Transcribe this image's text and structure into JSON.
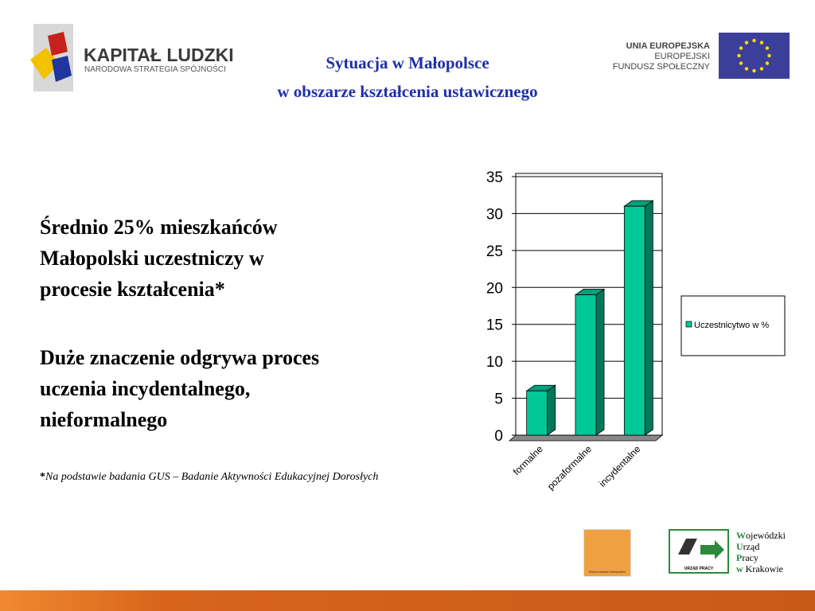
{
  "header": {
    "program_name": "KAPITAŁ LUDZKI",
    "program_subtitle": "NARODOWA STRATEGIA SPÓJNOŚCI",
    "title_lines": [
      "Sytuacja w Małopolsce",
      "w obszarze kształcenia ustawicznego"
    ],
    "eu_lines": [
      "UNIA EUROPEJSKA",
      "EUROPEJSKI",
      "FUNDUSZ SPOŁECZNY"
    ]
  },
  "body": {
    "paragraph_1": [
      "Średnio 25% mieszkańców",
      "Małopolski uczestniczy w",
      "procesie kształcenia*"
    ],
    "paragraph_2": [
      "Duże znaczenie odgrywa proces",
      "uczenia incydentalnego,",
      "nieformalnego"
    ],
    "footnote_mark": "*",
    "footnote": "Na podstawie badania GUS – Badanie Aktywności Edukacyjnej Dorosłych"
  },
  "footer": {
    "region_logo": "Województwo Małopolskie",
    "office_badge": "URZĄD PRACY",
    "office_lines": [
      "Wojewódzki",
      "Urząd",
      "Pracy",
      "w Krakowie"
    ]
  },
  "chart_data": {
    "type": "bar3d",
    "categories": [
      "formalne",
      "pozaformalne",
      "incydentalne"
    ],
    "series": [
      {
        "name": "Uczestnicytwo w %",
        "color": "#00c896",
        "values": [
          6,
          19,
          31
        ]
      }
    ],
    "ylim": [
      0,
      35
    ],
    "yticks": [
      0,
      5,
      10,
      15,
      20,
      25,
      30,
      35
    ],
    "grid": true,
    "legend": "right"
  }
}
